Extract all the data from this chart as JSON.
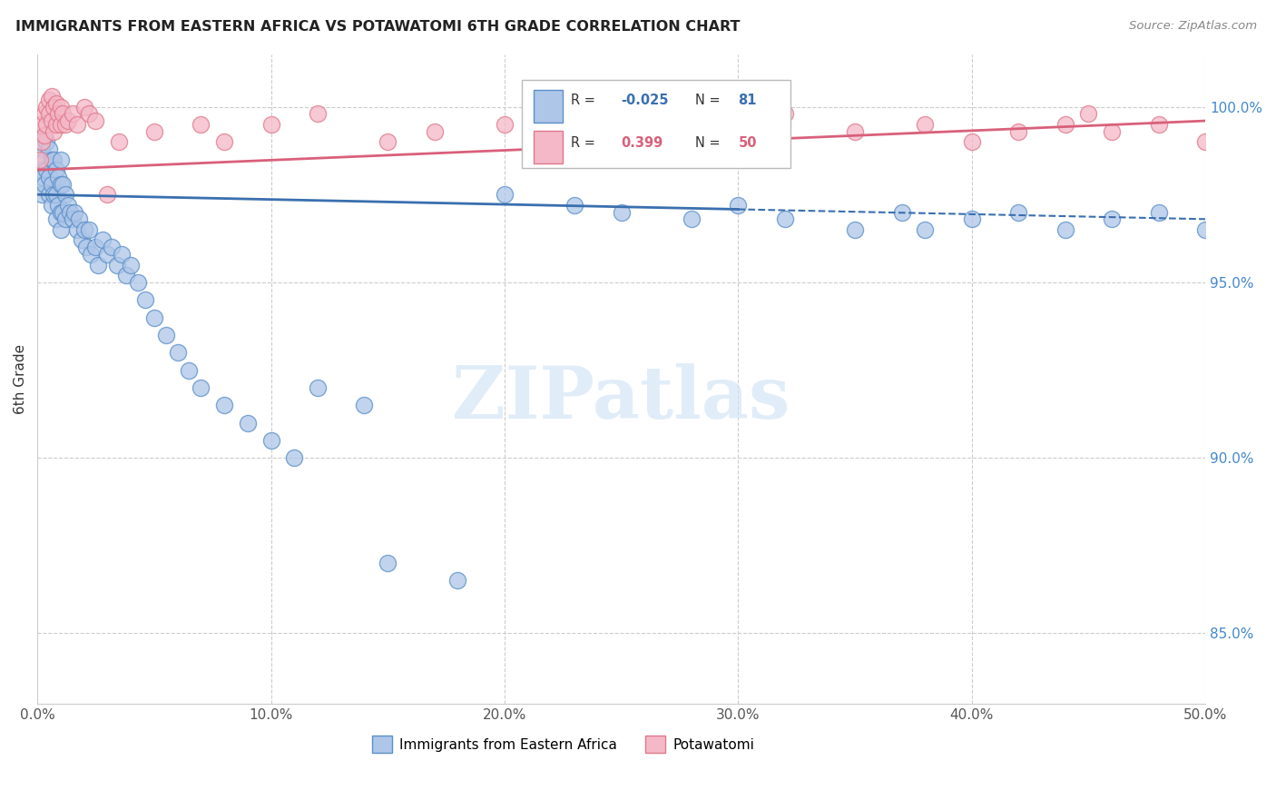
{
  "title": "IMMIGRANTS FROM EASTERN AFRICA VS POTAWATOMI 6TH GRADE CORRELATION CHART",
  "source": "Source: ZipAtlas.com",
  "ylabel": "6th Grade",
  "xlim": [
    0.0,
    50.0
  ],
  "ylim": [
    83.0,
    101.5
  ],
  "xticklabels": [
    "0.0%",
    "10.0%",
    "20.0%",
    "30.0%",
    "40.0%",
    "50.0%"
  ],
  "xticks": [
    0,
    10,
    20,
    30,
    40,
    50
  ],
  "yticklabels_right": [
    "85.0%",
    "90.0%",
    "95.0%",
    "100.0%"
  ],
  "yticks_right": [
    85,
    90,
    95,
    100
  ],
  "blue_R": -0.025,
  "blue_N": 81,
  "pink_R": 0.399,
  "pink_N": 50,
  "blue_color": "#aec6e8",
  "blue_edge_color": "#5b8fc9",
  "pink_color": "#f4b8c8",
  "pink_edge_color": "#e0788a",
  "blue_line_color": "#3a6faf",
  "pink_line_color": "#d9607a",
  "legend_label_blue": "Immigrants from Eastern Africa",
  "legend_label_pink": "Potawatomi",
  "blue_scatter_x": [
    0.1,
    0.1,
    0.2,
    0.2,
    0.2,
    0.3,
    0.3,
    0.3,
    0.4,
    0.4,
    0.5,
    0.5,
    0.5,
    0.6,
    0.6,
    0.6,
    0.7,
    0.7,
    0.8,
    0.8,
    0.8,
    0.9,
    0.9,
    1.0,
    1.0,
    1.0,
    1.0,
    1.1,
    1.1,
    1.2,
    1.2,
    1.3,
    1.4,
    1.5,
    1.6,
    1.7,
    1.8,
    1.9,
    2.0,
    2.1,
    2.2,
    2.3,
    2.5,
    2.6,
    2.8,
    3.0,
    3.2,
    3.4,
    3.6,
    3.8,
    4.0,
    4.3,
    4.6,
    5.0,
    5.5,
    6.0,
    6.5,
    7.0,
    8.0,
    9.0,
    10.0,
    11.0,
    12.0,
    14.0,
    15.0,
    18.0,
    20.0,
    23.0,
    25.0,
    28.0,
    30.0,
    32.0,
    35.0,
    37.0,
    38.0,
    40.0,
    42.0,
    44.0,
    46.0,
    48.0,
    50.0
  ],
  "blue_scatter_y": [
    99.0,
    98.2,
    98.8,
    98.0,
    97.5,
    99.2,
    98.5,
    97.8,
    99.0,
    98.2,
    98.8,
    98.0,
    97.5,
    98.5,
    97.8,
    97.2,
    98.5,
    97.5,
    98.2,
    97.5,
    96.8,
    98.0,
    97.2,
    98.5,
    97.8,
    97.0,
    96.5,
    97.8,
    97.0,
    97.5,
    96.8,
    97.2,
    97.0,
    96.8,
    97.0,
    96.5,
    96.8,
    96.2,
    96.5,
    96.0,
    96.5,
    95.8,
    96.0,
    95.5,
    96.2,
    95.8,
    96.0,
    95.5,
    95.8,
    95.2,
    95.5,
    95.0,
    94.5,
    94.0,
    93.5,
    93.0,
    92.5,
    92.0,
    91.5,
    91.0,
    90.5,
    90.0,
    92.0,
    91.5,
    87.0,
    86.5,
    97.5,
    97.2,
    97.0,
    96.8,
    97.2,
    96.8,
    96.5,
    97.0,
    96.5,
    96.8,
    97.0,
    96.5,
    96.8,
    97.0,
    96.5
  ],
  "pink_scatter_x": [
    0.1,
    0.2,
    0.2,
    0.3,
    0.3,
    0.4,
    0.4,
    0.5,
    0.5,
    0.6,
    0.6,
    0.7,
    0.7,
    0.8,
    0.8,
    0.9,
    1.0,
    1.0,
    1.1,
    1.2,
    1.3,
    1.5,
    1.7,
    2.0,
    2.2,
    2.5,
    3.0,
    3.5,
    5.0,
    7.0,
    8.0,
    10.0,
    12.0,
    15.0,
    17.0,
    20.0,
    22.0,
    25.0,
    28.0,
    30.0,
    32.0,
    35.0,
    38.0,
    40.0,
    42.0,
    44.0,
    45.0,
    46.0,
    48.0,
    50.0
  ],
  "pink_scatter_y": [
    98.5,
    99.5,
    99.0,
    99.8,
    99.2,
    100.0,
    99.5,
    100.2,
    99.8,
    100.3,
    99.6,
    100.0,
    99.3,
    100.1,
    99.5,
    99.8,
    100.0,
    99.5,
    99.8,
    99.5,
    99.6,
    99.8,
    99.5,
    100.0,
    99.8,
    99.6,
    97.5,
    99.0,
    99.3,
    99.5,
    99.0,
    99.5,
    99.8,
    99.0,
    99.3,
    99.5,
    99.0,
    99.5,
    99.2,
    99.5,
    99.8,
    99.3,
    99.5,
    99.0,
    99.3,
    99.5,
    99.8,
    99.3,
    99.5,
    99.0
  ],
  "blue_line_y_at_0": 97.5,
  "blue_line_y_at_50": 96.8,
  "pink_line_y_at_0": 98.2,
  "pink_line_y_at_50": 99.6,
  "blue_solid_end_x": 30.0,
  "watermark_text": "ZIPatlas"
}
